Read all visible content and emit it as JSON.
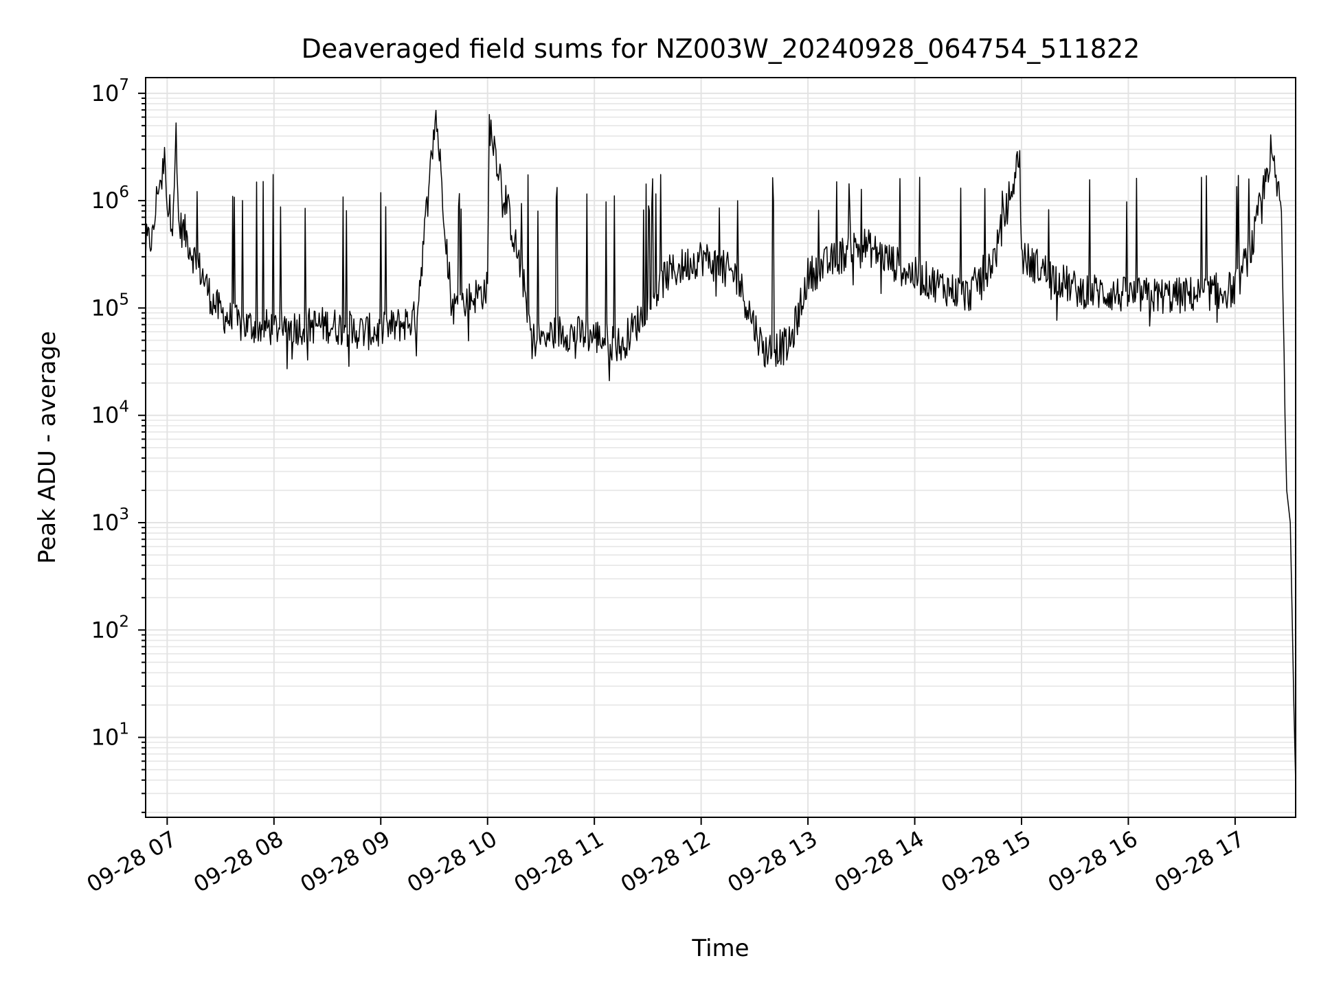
{
  "chart_data": {
    "type": "line",
    "title": "Deaveraged field sums for NZ003W_20240928_064754_511822",
    "xlabel": "Time",
    "ylabel": "Peak ADU - average",
    "yscale": "log",
    "ylim": [
      1.8,
      14000000
    ],
    "xlim": [
      "2024-09-28 06:47:54",
      "2024-09-28 17:34:00"
    ],
    "grid": true,
    "x_ticks": [
      {
        "t": "2024-09-28 07:00",
        "label": "09-28 07"
      },
      {
        "t": "2024-09-28 08:00",
        "label": "09-28 08"
      },
      {
        "t": "2024-09-28 09:00",
        "label": "09-28 09"
      },
      {
        "t": "2024-09-28 10:00",
        "label": "09-28 10"
      },
      {
        "t": "2024-09-28 11:00",
        "label": "09-28 11"
      },
      {
        "t": "2024-09-28 12:00",
        "label": "09-28 12"
      },
      {
        "t": "2024-09-28 13:00",
        "label": "09-28 13"
      },
      {
        "t": "2024-09-28 14:00",
        "label": "09-28 14"
      },
      {
        "t": "2024-09-28 15:00",
        "label": "09-28 15"
      },
      {
        "t": "2024-09-28 16:00",
        "label": "09-28 16"
      },
      {
        "t": "2024-09-28 17:00",
        "label": "09-28 17"
      }
    ],
    "y_ticks": [
      {
        "value": 10,
        "base": "10",
        "exp": "1"
      },
      {
        "value": 100,
        "base": "10",
        "exp": "2"
      },
      {
        "value": 1000,
        "base": "10",
        "exp": "3"
      },
      {
        "value": 10000,
        "base": "10",
        "exp": "4"
      },
      {
        "value": 100000,
        "base": "10",
        "exp": "5"
      },
      {
        "value": 1000000,
        "base": "10",
        "exp": "6"
      },
      {
        "value": 10000000,
        "base": "10",
        "exp": "7"
      }
    ],
    "series": [
      {
        "color": "#000000",
        "points": [
          [
            "2024-09-28 06:48",
            400000
          ],
          [
            "2024-09-28 06:52",
            450000
          ],
          [
            "2024-09-28 06:55",
            1500000
          ],
          [
            "2024-09-28 06:57",
            1600000
          ],
          [
            "2024-09-28 06:59",
            2700000
          ],
          [
            "2024-09-28 07:00",
            900000
          ],
          [
            "2024-09-28 07:03",
            700000
          ],
          [
            "2024-09-28 07:05",
            4000000
          ],
          [
            "2024-09-28 07:06",
            600000
          ],
          [
            "2024-09-28 07:10",
            500000
          ],
          [
            "2024-09-28 07:15",
            300000
          ],
          [
            "2024-09-28 07:20",
            200000
          ],
          [
            "2024-09-28 07:25",
            120000
          ],
          [
            "2024-09-28 07:30",
            90000
          ],
          [
            "2024-09-28 07:40",
            70000
          ],
          [
            "2024-09-28 08:00",
            65000
          ],
          [
            "2024-09-28 08:30",
            70000
          ],
          [
            "2024-09-28 08:50",
            60000
          ],
          [
            "2024-09-28 09:00",
            60000
          ],
          [
            "2024-09-28 09:20",
            80000
          ],
          [
            "2024-09-28 09:31",
            6700000
          ],
          [
            "2024-09-28 09:40",
            100000
          ],
          [
            "2024-09-28 10:00",
            150000
          ],
          [
            "2024-09-28 10:01",
            5200000
          ],
          [
            "2024-09-28 10:20",
            180000
          ],
          [
            "2024-09-28 10:25",
            50000
          ],
          [
            "2024-09-28 10:40",
            60000
          ],
          [
            "2024-09-28 11:00",
            55000
          ],
          [
            "2024-09-28 11:15",
            45000
          ],
          [
            "2024-09-28 11:30",
            100000
          ],
          [
            "2024-09-28 11:40",
            200000
          ],
          [
            "2024-09-28 12:00",
            300000
          ],
          [
            "2024-09-28 12:20",
            200000
          ],
          [
            "2024-09-28 12:35",
            40000
          ],
          [
            "2024-09-28 12:50",
            45000
          ],
          [
            "2024-09-28 13:00",
            200000
          ],
          [
            "2024-09-28 13:30",
            400000
          ],
          [
            "2024-09-28 14:00",
            200000
          ],
          [
            "2024-09-28 14:30",
            130000
          ],
          [
            "2024-09-28 14:45",
            300000
          ],
          [
            "2024-09-28 14:59",
            2700000
          ],
          [
            "2024-09-28 15:00",
            300000
          ],
          [
            "2024-09-28 15:30",
            150000
          ],
          [
            "2024-09-28 16:00",
            130000
          ],
          [
            "2024-09-28 16:30",
            130000
          ],
          [
            "2024-09-28 17:00",
            150000
          ],
          [
            "2024-09-28 17:10",
            400000
          ],
          [
            "2024-09-28 17:20",
            2800000
          ],
          [
            "2024-09-28 17:23",
            1500000
          ],
          [
            "2024-09-28 17:26",
            800000
          ],
          [
            "2024-09-28 17:28",
            10000
          ],
          [
            "2024-09-28 17:29",
            2000
          ],
          [
            "2024-09-28 17:31",
            1000
          ],
          [
            "2024-09-28 17:32",
            150
          ],
          [
            "2024-09-28 17:33",
            20
          ],
          [
            "2024-09-28 17:34",
            3.8
          ]
        ]
      }
    ]
  }
}
